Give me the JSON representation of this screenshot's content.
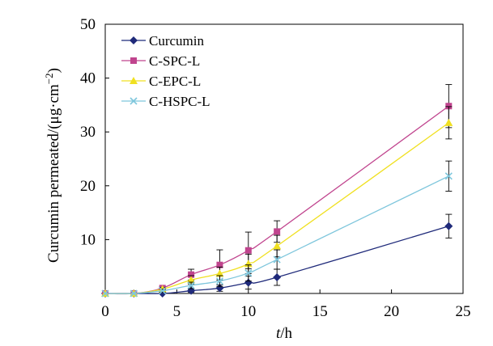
{
  "chart_data": {
    "type": "line",
    "title": "",
    "xlabel_italic": "t",
    "xlabel_rest": "/h",
    "ylabel_main": "Curcumin permeated/(μg·cm",
    "ylabel_sup": "−2",
    "ylabel_close": ")",
    "xlim": [
      0,
      25
    ],
    "ylim": [
      0,
      50
    ],
    "x_ticks": [
      "0",
      "5",
      "10",
      "15",
      "20",
      "25"
    ],
    "y_ticks": [
      "10",
      "20",
      "30",
      "40",
      "50"
    ],
    "grid": false,
    "legend_position": "top-left",
    "x": [
      0,
      2,
      4,
      6,
      8,
      10,
      12,
      24
    ],
    "series": [
      {
        "name": "Curcumin",
        "color": "#1f2a7a",
        "marker": "diamond",
        "values": [
          0,
          0,
          0,
          0.5,
          1,
          2,
          3,
          12.5
        ],
        "errors": [
          0,
          0,
          0,
          0.3,
          0.6,
          1.2,
          1.5,
          2.2
        ]
      },
      {
        "name": "C-SPC-L",
        "color": "#c0448e",
        "marker": "square",
        "values": [
          0,
          0,
          1,
          3.5,
          5.3,
          8,
          11.5,
          34.8
        ],
        "errors": [
          0,
          0,
          0.3,
          1,
          2.8,
          3.4,
          2,
          4
        ]
      },
      {
        "name": "C-EPC-L",
        "color": "#f0e020",
        "marker": "triangle",
        "values": [
          0,
          0,
          0.8,
          2.5,
          3.7,
          5.5,
          8.8,
          31.7
        ],
        "errors": [
          0,
          0,
          0.3,
          0.8,
          1.2,
          1.8,
          2,
          3
        ]
      },
      {
        "name": "C-HSPC-L",
        "color": "#7ec6dc",
        "marker": "cross",
        "values": [
          0,
          0,
          0.5,
          1.5,
          2.3,
          3.8,
          6.3,
          21.8
        ],
        "errors": [
          0,
          0,
          0.3,
          0.6,
          1,
          1.5,
          1.8,
          2.8
        ]
      }
    ]
  }
}
